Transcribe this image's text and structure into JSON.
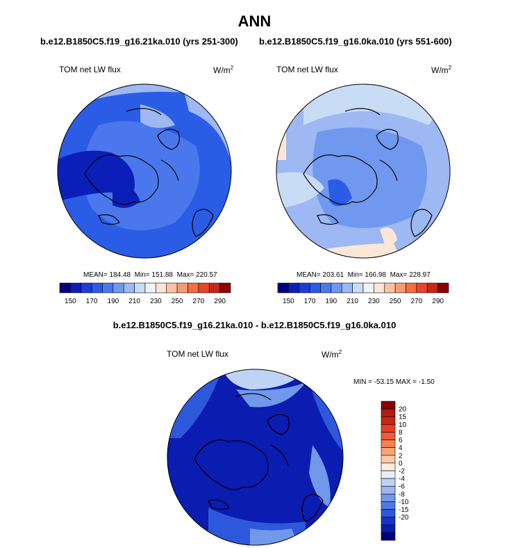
{
  "title": "ANN",
  "panel_left": {
    "case": "b.e12.B1850C5.f19_g16.21ka.010 (yrs 251-300)",
    "variable": "TOM net LW flux",
    "units_base": "W/m",
    "units_exp": "2",
    "mean_label": "MEAN= 184.48",
    "min_label": "Min= 151.88",
    "max_label": "Max= 220.57"
  },
  "panel_right": {
    "case": "b.e12.B1850C5.f19_g16.0ka.010 (yrs 551-600)",
    "variable": "TOM net LW flux",
    "units_base": "W/m",
    "units_exp": "2",
    "mean_label": "MEAN= 203.61",
    "min_label": "Min= 166.98",
    "max_label": "Max= 228.97"
  },
  "panel_diff": {
    "title": "b.e12.B1850C5.f19_g16.21ka.010 - b.e12.B1850C5.f19_g16.0ka.010",
    "variable": "TOM net LW flux",
    "units_base": "W/m",
    "units_exp": "2",
    "minmax_label": "MIN = -53.15 MAX =  -1.50"
  },
  "colorbar_main": {
    "colors": [
      "#000080",
      "#0b1fb8",
      "#1c3fd8",
      "#2b5ce6",
      "#4a78ec",
      "#7098ee",
      "#9db8f2",
      "#c8dcf6",
      "#eef4fb",
      "#fde6d6",
      "#fbc2a2",
      "#f99b70",
      "#f46d43",
      "#e8452a",
      "#c8261a",
      "#8b0000"
    ],
    "labels": [
      "150",
      "170",
      "190",
      "210",
      "230",
      "250",
      "270",
      "290"
    ]
  },
  "colorbar_diff": {
    "colors": [
      "#8b0000",
      "#b01c14",
      "#c8261a",
      "#e0402a",
      "#f05a38",
      "#f58050",
      "#f8a47a",
      "#fbc9a8",
      "#fdecdc",
      "#e6eefb",
      "#c0d3f4",
      "#9ab8ee",
      "#7298ea",
      "#4f7ae6",
      "#2e58dc",
      "#1634c8",
      "#0b1cb0",
      "#000080"
    ],
    "labels": [
      "20",
      "15",
      "10",
      "8",
      "6",
      "4",
      "2",
      "0",
      "-2",
      "-4",
      "-6",
      "-8",
      "-10",
      "-15",
      "-20"
    ]
  },
  "map_colors": {
    "left_base": "#2b5ce6",
    "left_mid": "#4a78ec",
    "left_light": "#9db8f2",
    "left_dark": "#0b1fb8",
    "right_base": "#9db8f2",
    "right_mid": "#7098ee",
    "right_light": "#c8dcf6",
    "right_warm": "#fde6d6",
    "right_dark": "#2b5ce6",
    "diff_base": "#0b1cb0",
    "diff_mid": "#2e58dc",
    "diff_light": "#7298ea",
    "diff_pale": "#c0d3f4",
    "coast": "#000000"
  }
}
